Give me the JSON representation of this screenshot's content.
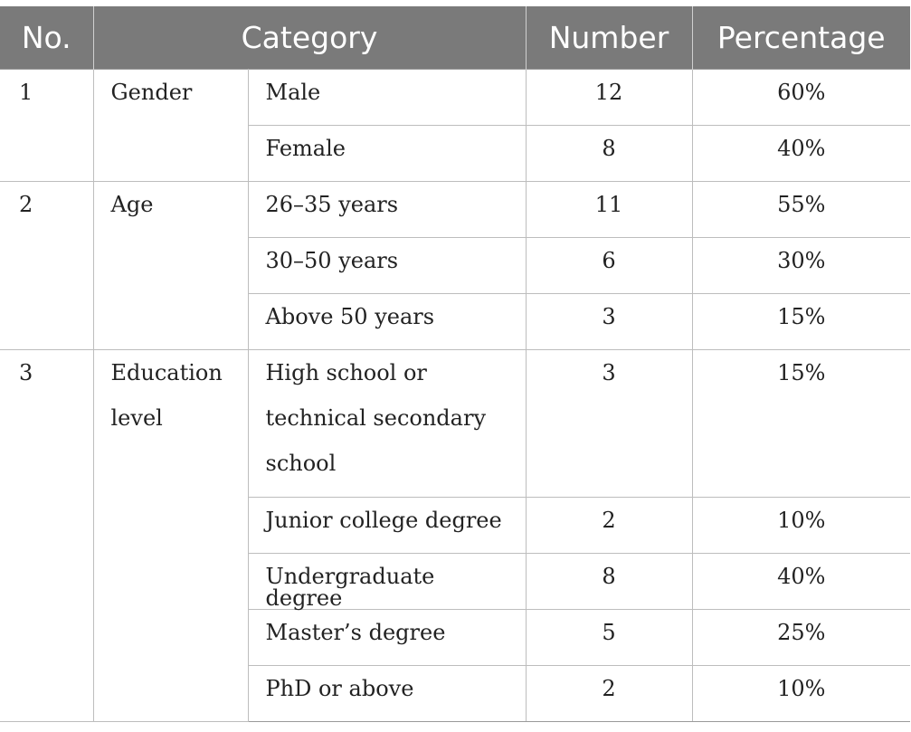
{
  "table": {
    "headers": {
      "no": "No.",
      "category": "Category",
      "number": "Number",
      "percentage": "Percentage"
    },
    "groups": [
      {
        "no": "1",
        "category": "Gender",
        "rows": [
          {
            "label": "Male",
            "number": "12",
            "percentage": "60%"
          },
          {
            "label": "Female",
            "number": "8",
            "percentage": "40%"
          }
        ]
      },
      {
        "no": "2",
        "category": "Age",
        "rows": [
          {
            "label": "26–35 years",
            "number": "11",
            "percentage": "55%"
          },
          {
            "label": "30–50 years",
            "number": "6",
            "percentage": "30%"
          },
          {
            "label": "Above 50 years",
            "number": "3",
            "percentage": "15%"
          }
        ]
      },
      {
        "no": "3",
        "category": "Education level",
        "rows": [
          {
            "label": "High school or technical secondary school",
            "number": "3",
            "percentage": "15%"
          },
          {
            "label": "Junior college degree",
            "number": "2",
            "percentage": "10%"
          },
          {
            "label": "Undergraduate degree",
            "number": "8",
            "percentage": "40%"
          },
          {
            "label": "Master’s degree",
            "number": "5",
            "percentage": "25%"
          },
          {
            "label": "PhD or above",
            "number": "2",
            "percentage": "10%"
          }
        ]
      }
    ]
  }
}
